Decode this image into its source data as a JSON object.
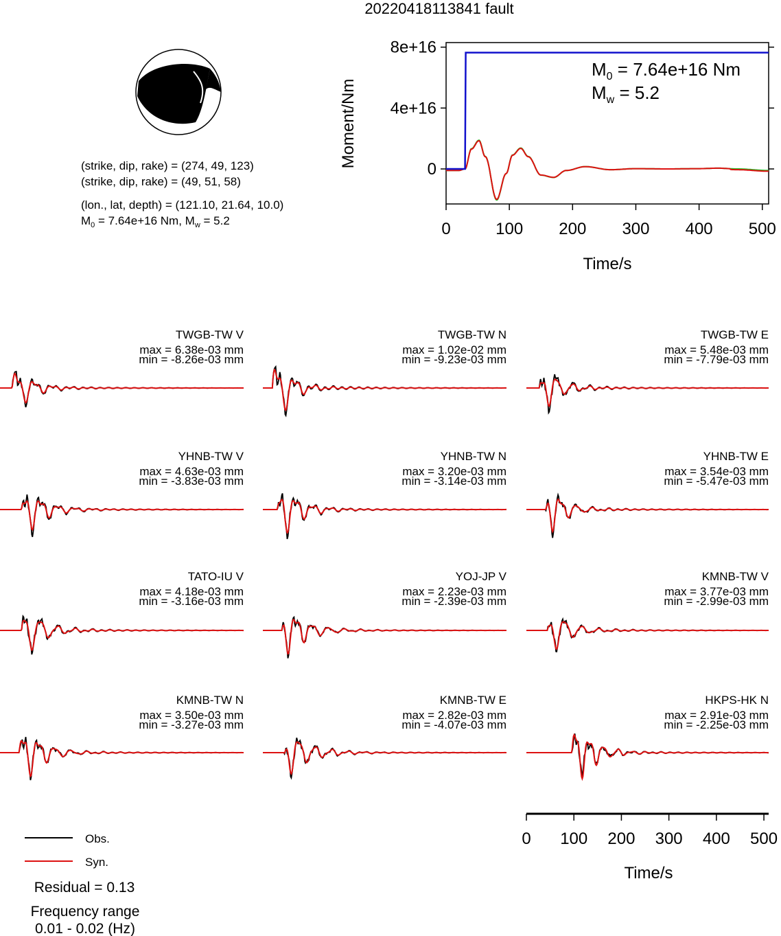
{
  "title": "20220418113841 fault",
  "mechanism": {
    "lines": [
      "(strike, dip, rake) = (274, 49, 123)",
      "(strike, dip, rake) = (49, 51, 58)",
      "(lon., lat, depth) = (121.10, 21.64, 10.0)"
    ],
    "m0_text": "M",
    "m0_sub": "0",
    "m0_rest": " = 7.64e+16 Nm, M",
    "mw_sub": "w",
    "mw_rest": " = 5.2"
  },
  "moment_panel": {
    "ylabel": "Moment/Nm",
    "xlabel": "Time/s",
    "m0_label": "M",
    "m0_sub": "0",
    "m0_value": " = 7.64e+16 Nm",
    "mw_label": "M",
    "mw_sub": "w",
    "mw_value": " = 5.2",
    "yticks": [
      "8e+16",
      "4e+16",
      "0"
    ],
    "xticks": [
      "0",
      "100",
      "200",
      "300",
      "400",
      "500"
    ]
  },
  "chart_data": {
    "type": "line",
    "moment_rate": {
      "x": [
        0,
        30,
        31,
        510
      ],
      "y": [
        0,
        0,
        7.64e+16,
        7.64e+16
      ],
      "xlim": [
        0,
        510
      ],
      "ylim": [
        -2.3e+16,
        8.3e+16
      ],
      "color": "#1010cc"
    },
    "moment_rate_wiggle": {
      "x": [
        0,
        20,
        30,
        40,
        52,
        62,
        80,
        95,
        105,
        118,
        130,
        150,
        170,
        190,
        220,
        260,
        300,
        350,
        400,
        430,
        460,
        510
      ],
      "y": [
        -1000000000000000.0,
        -1000000000000000.0,
        0,
        1.3e+16,
        1.85e+16,
        8000000000000000.0,
        -2e+16,
        -3000000000000000.0,
        9000000000000000.0,
        1.35e+16,
        8000000000000000.0,
        -4000000000000000.0,
        -5500000000000000.0,
        -1000000000000000.0,
        1500000000000000.0,
        -500000000000000.0,
        200000000000000.0,
        0,
        200000000000000.0,
        500000000000000.0,
        0,
        -1000000000000000.0
      ],
      "colors": [
        "#22bb22",
        "#dd1111"
      ]
    },
    "stations": [
      {
        "name": "TWGB-TW V",
        "max": "max = 6.38e-03 mm",
        "min": "min = -8.26e-03 mm"
      },
      {
        "name": "TWGB-TW N",
        "max": "max = 1.02e-02 mm",
        "min": "min = -9.23e-03 mm"
      },
      {
        "name": "TWGB-TW E",
        "max": "max = 5.48e-03 mm",
        "min": "min = -7.79e-03 mm"
      },
      {
        "name": "YHNB-TW V",
        "max": "max = 4.63e-03 mm",
        "min": "min = -3.83e-03 mm"
      },
      {
        "name": "YHNB-TW N",
        "max": "max = 3.20e-03 mm",
        "min": "min = -3.14e-03 mm"
      },
      {
        "name": "YHNB-TW E",
        "max": "max = 3.54e-03 mm",
        "min": "min = -5.47e-03 mm"
      },
      {
        "name": "TATO-IU V",
        "max": "max = 4.18e-03 mm",
        "min": "min = -3.16e-03 mm"
      },
      {
        "name": "YOJ-JP V",
        "max": "max = 2.23e-03 mm",
        "min": "min = -2.39e-03 mm"
      },
      {
        "name": "KMNB-TW V",
        "max": "max = 3.77e-03 mm",
        "min": "min = -2.99e-03 mm"
      },
      {
        "name": "KMNB-TW N",
        "max": "max = 3.50e-03 mm",
        "min": "min = -3.27e-03 mm"
      },
      {
        "name": "KMNB-TW E",
        "max": "max = 2.82e-03 mm",
        "min": "min = -4.07e-03 mm"
      },
      {
        "name": "HKPS-HK N",
        "max": "max = 2.91e-03 mm",
        "min": "min = -2.25e-03 mm"
      }
    ],
    "wave_axis": {
      "xlabel": "Time/s",
      "xticks": [
        "0",
        "100",
        "200",
        "300",
        "400",
        "500"
      ],
      "xlim": [
        0,
        510
      ]
    }
  },
  "legend": {
    "obs": "Obs.",
    "syn": "Syn.",
    "obs_color": "#000000",
    "syn_color": "#dd1111"
  },
  "residual": "Residual = 0.13",
  "freq_title": "Frequency range",
  "freq_value": "0.01 - 0.02 (Hz)"
}
